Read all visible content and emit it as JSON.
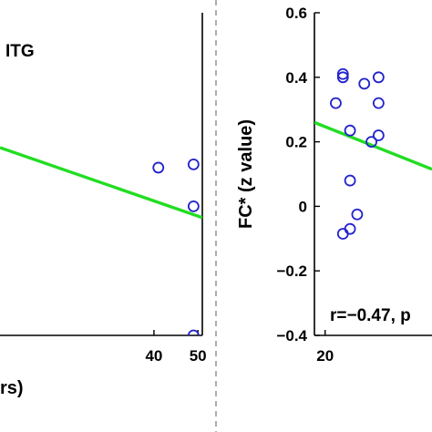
{
  "chart_data": [
    {
      "type": "scatter",
      "title": "ITG",
      "xlabel": "rs)",
      "ylabel": "",
      "xlim": [
        5,
        51
      ],
      "ylim": [
        -0.4,
        0.6
      ],
      "x_ticks": [
        40,
        50
      ],
      "y_ticks": [],
      "points": [
        {
          "x": 41,
          "y": 0.12
        },
        {
          "x": 49,
          "y": 0.13
        },
        {
          "x": 49,
          "y": 0.0
        },
        {
          "x": 49,
          "y": -0.4
        }
      ],
      "fit": {
        "x": [
          5,
          51
        ],
        "y": [
          0.182,
          -0.035
        ]
      },
      "annotation": ""
    },
    {
      "type": "scatter",
      "title": "",
      "xlabel": "",
      "ylabel": "FC* (z value)",
      "xlim": [
        18.5,
        35
      ],
      "ylim": [
        -0.4,
        0.6
      ],
      "x_ticks": [
        20
      ],
      "y_ticks": [
        -0.4,
        -0.2,
        0,
        0.2,
        0.4,
        0.6
      ],
      "y_tick_labels": [
        "−0.4",
        "−0.2",
        "0",
        "0.2",
        "0.4",
        "0.6"
      ],
      "points": [
        {
          "x": 21.5,
          "y": 0.32
        },
        {
          "x": 22.5,
          "y": 0.41
        },
        {
          "x": 22.5,
          "y": 0.4
        },
        {
          "x": 22.5,
          "y": -0.085
        },
        {
          "x": 23.5,
          "y": 0.235
        },
        {
          "x": 23.5,
          "y": 0.08
        },
        {
          "x": 23.5,
          "y": -0.07
        },
        {
          "x": 24.5,
          "y": -0.025
        },
        {
          "x": 25.5,
          "y": 0.38
        },
        {
          "x": 26.5,
          "y": 0.2
        },
        {
          "x": 27.5,
          "y": 0.4
        },
        {
          "x": 27.5,
          "y": 0.32
        },
        {
          "x": 27.5,
          "y": 0.22
        }
      ],
      "fit": {
        "x": [
          18.5,
          35
        ],
        "y": [
          0.26,
          0.115
        ]
      },
      "annotation": "r=−0.47, p"
    }
  ],
  "colors": {
    "points": "#2222cc",
    "fit": "#22dd22",
    "axes": "#000000",
    "divider": "#777777"
  }
}
